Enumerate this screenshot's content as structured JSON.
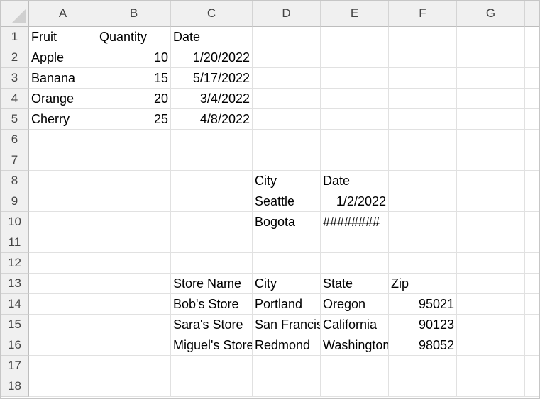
{
  "columns": [
    "A",
    "B",
    "C",
    "D",
    "E",
    "F",
    "G"
  ],
  "rows": [
    [
      "Fruit",
      "Quantity",
      "Date",
      "",
      "",
      "",
      ""
    ],
    [
      "Apple",
      "10",
      "1/20/2022",
      "",
      "",
      "",
      ""
    ],
    [
      "Banana",
      "15",
      "5/17/2022",
      "",
      "",
      "",
      ""
    ],
    [
      "Orange",
      "20",
      "3/4/2022",
      "",
      "",
      "",
      ""
    ],
    [
      "Cherry",
      "25",
      "4/8/2022",
      "",
      "",
      "",
      ""
    ],
    [
      "",
      "",
      "",
      "",
      "",
      "",
      ""
    ],
    [
      "",
      "",
      "",
      "",
      "",
      "",
      ""
    ],
    [
      "",
      "",
      "",
      "City",
      "Date",
      "",
      ""
    ],
    [
      "",
      "",
      "",
      "Seattle",
      "1/2/2022",
      "",
      ""
    ],
    [
      "",
      "",
      "",
      "Bogota",
      "########",
      "",
      ""
    ],
    [
      "",
      "",
      "",
      "",
      "",
      "",
      ""
    ],
    [
      "",
      "",
      "",
      "",
      "",
      "",
      ""
    ],
    [
      "",
      "",
      "Store Name",
      "City",
      "State",
      "Zip",
      ""
    ],
    [
      "",
      "",
      "Bob's Store",
      "Portland",
      "Oregon",
      "95021",
      ""
    ],
    [
      "",
      "",
      "Sara's Store",
      "San Francisco",
      "California",
      "90123",
      ""
    ],
    [
      "",
      "",
      "Miguel's Store",
      "Redmond",
      "Washington",
      "98052",
      ""
    ],
    [
      "",
      "",
      "",
      "",
      "",
      "",
      ""
    ],
    [
      "",
      "",
      "",
      "",
      "",
      "",
      ""
    ]
  ],
  "right_aligned": [
    "10",
    "15",
    "20",
    "25",
    "1/20/2022",
    "5/17/2022",
    "3/4/2022",
    "4/8/2022",
    "1/2/2022",
    "95021",
    "90123",
    "98052"
  ]
}
